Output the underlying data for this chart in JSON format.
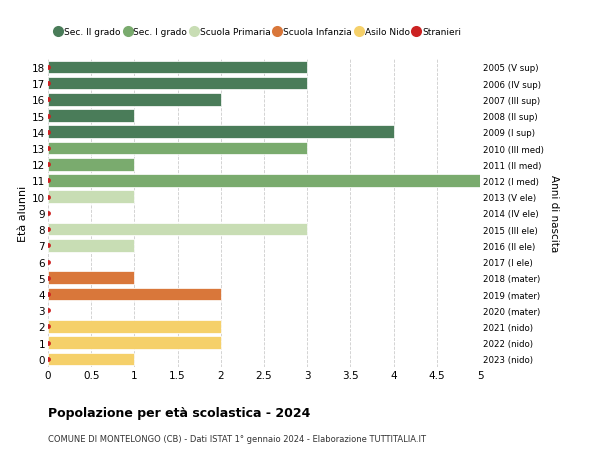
{
  "ages": [
    18,
    17,
    16,
    15,
    14,
    13,
    12,
    11,
    10,
    9,
    8,
    7,
    6,
    5,
    4,
    3,
    2,
    1,
    0
  ],
  "anni_nascita": [
    "2005 (V sup)",
    "2006 (IV sup)",
    "2007 (III sup)",
    "2008 (II sup)",
    "2009 (I sup)",
    "2010 (III med)",
    "2011 (II med)",
    "2012 (I med)",
    "2013 (V ele)",
    "2014 (IV ele)",
    "2015 (III ele)",
    "2016 (II ele)",
    "2017 (I ele)",
    "2018 (mater)",
    "2019 (mater)",
    "2020 (mater)",
    "2021 (nido)",
    "2022 (nido)",
    "2023 (nido)"
  ],
  "bar_values": [
    3,
    3,
    2,
    1,
    4,
    3,
    1,
    5,
    1,
    0,
    3,
    1,
    0,
    1,
    2,
    0,
    2,
    2,
    1
  ],
  "bar_colors": [
    "#4a7c59",
    "#4a7c59",
    "#4a7c59",
    "#4a7c59",
    "#4a7c59",
    "#7aab6e",
    "#7aab6e",
    "#7aab6e",
    "#c8ddb4",
    "#c8ddb4",
    "#c8ddb4",
    "#c8ddb4",
    "#c8ddb4",
    "#d9773a",
    "#d9773a",
    "#d9773a",
    "#f5d06a",
    "#f5d06a",
    "#f5d06a"
  ],
  "dot_color": "#cc2222",
  "legend_labels": [
    "Sec. II grado",
    "Sec. I grado",
    "Scuola Primaria",
    "Scuola Infanzia",
    "Asilo Nido",
    "Stranieri"
  ],
  "legend_colors": [
    "#4a7c59",
    "#7aab6e",
    "#c8ddb4",
    "#d9773a",
    "#f5d06a",
    "#cc2222"
  ],
  "title": "Popolazione per età scolastica - 2024",
  "subtitle": "COMUNE DI MONTELONGO (CB) - Dati ISTAT 1° gennaio 2024 - Elaborazione TUTTITALIA.IT",
  "ylabel_left": "Età alunni",
  "ylabel_right": "Anni di nascita",
  "xlim": [
    0,
    5.0
  ],
  "xticks": [
    0,
    0.5,
    1.0,
    1.5,
    2.0,
    2.5,
    3.0,
    3.5,
    4.0,
    4.5,
    5.0
  ],
  "background_color": "#ffffff",
  "grid_color": "#cccccc",
  "bar_height": 0.78
}
